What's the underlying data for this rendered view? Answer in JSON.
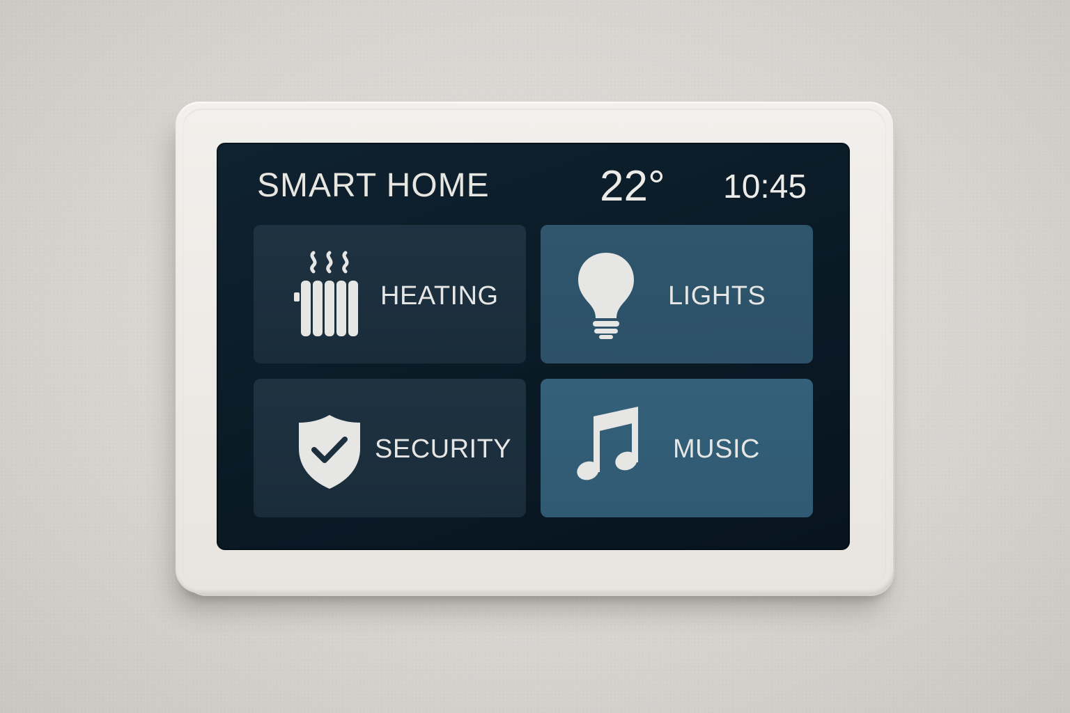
{
  "header": {
    "title": "SMART HOME",
    "temperature": "22°",
    "time": "10:45"
  },
  "tiles": [
    {
      "id": "heating",
      "label": "HEATING",
      "icon": "radiator-icon"
    },
    {
      "id": "lights",
      "label": "LIGHTS",
      "icon": "lightbulb-icon"
    },
    {
      "id": "security",
      "label": "SECURITY",
      "icon": "shield-check-icon"
    },
    {
      "id": "music",
      "label": "MUSIC",
      "icon": "music-note-icon"
    }
  ],
  "colors": {
    "screen_background": "#0a1a25",
    "tile_dark": "#1e3241",
    "tile_blue": "#2f566d",
    "text": "#e6e6e4",
    "bezel": "#eeebe6"
  }
}
